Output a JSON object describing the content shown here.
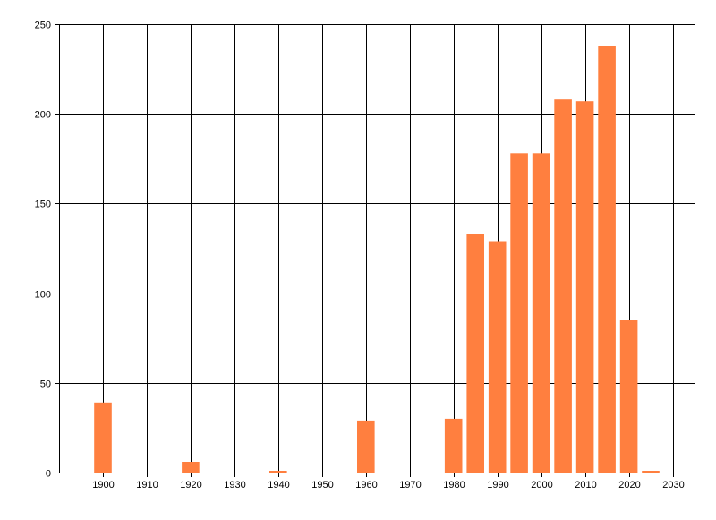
{
  "chart_data": {
    "type": "bar",
    "title": "",
    "xlabel": "",
    "ylabel": "",
    "x": [
      1900,
      1920,
      1940,
      1960,
      1980,
      1985,
      1990,
      1995,
      2000,
      2005,
      2010,
      2015,
      2020,
      2025
    ],
    "values": [
      39,
      6,
      1,
      29,
      30,
      133,
      129,
      178,
      178,
      208,
      207,
      238,
      85,
      1
    ],
    "xlim": [
      1890,
      2035
    ],
    "ylim": [
      0,
      250
    ],
    "x_ticks": [
      "1900",
      "1910",
      "1920",
      "1930",
      "1940",
      "1950",
      "1960",
      "1970",
      "1980",
      "1990",
      "2000",
      "2010",
      "2020",
      "2030"
    ],
    "y_ticks": [
      "0",
      "50",
      "100",
      "150",
      "200",
      "250"
    ],
    "grid": true,
    "bar_color": "#ff7f3f",
    "grid_color": "#000000"
  }
}
